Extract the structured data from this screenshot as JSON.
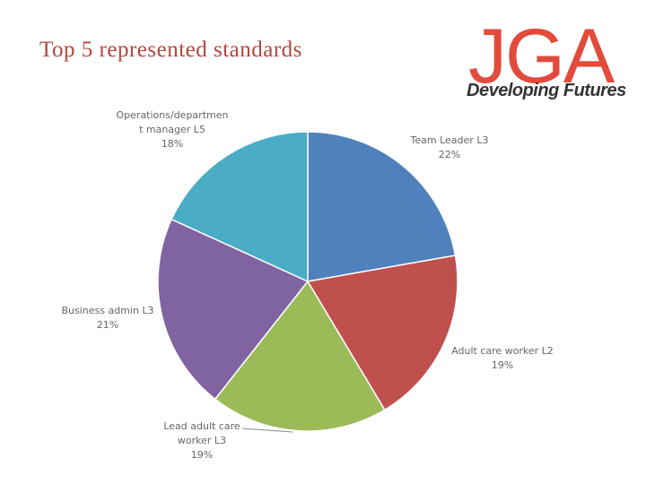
{
  "chart_data": {
    "type": "pie",
    "title": "Top 5 represented standards",
    "categories": [
      "Team Leader L3",
      "Adult care worker L2",
      "Lead adult care worker L3",
      "Business admin L3",
      "Operations/department manager L5"
    ],
    "values": [
      22,
      19,
      19,
      21,
      18
    ],
    "value_labels": [
      "22%",
      "19%",
      "19%",
      "21%",
      "18%"
    ],
    "colors": [
      "#4f81bd",
      "#c0504d",
      "#9bbb59",
      "#8064a2",
      "#4bacc6"
    ]
  },
  "logo": {
    "text": "JGA",
    "tagline": "Developing Futures"
  }
}
